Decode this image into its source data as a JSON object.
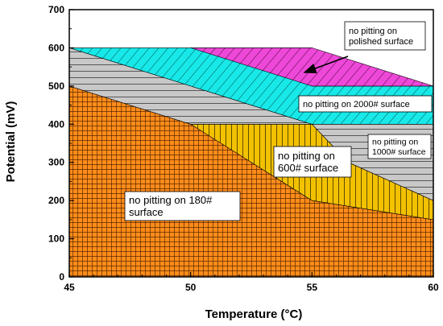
{
  "chart_data": {
    "type": "area",
    "title": "",
    "xlabel": "Temperature (°C)",
    "ylabel": "Potential (mV)",
    "xlim": [
      45,
      60
    ],
    "ylim": [
      0,
      700
    ],
    "x_ticks": [
      "45",
      "50",
      "55",
      "60"
    ],
    "y_ticks": [
      "0",
      "100",
      "200",
      "300",
      "400",
      "500",
      "600",
      "700"
    ],
    "grid": false,
    "regions": [
      {
        "name": "180# surface",
        "label_lines": [
          "no pitting on 180#",
          "surface"
        ],
        "color": "#ff8c1a",
        "pattern": "crosshatch",
        "boundary": [
          [
            45,
            0
          ],
          [
            45,
            500
          ],
          [
            50,
            400
          ],
          [
            55,
            200
          ],
          [
            60,
            150
          ],
          [
            60,
            0
          ]
        ]
      },
      {
        "name": "600# surface",
        "label_lines": [
          "no pitting on",
          "600# surface"
        ],
        "color": "#f2c100",
        "pattern": "vertical",
        "boundary": [
          [
            50,
            400
          ],
          [
            55,
            400
          ],
          [
            56.5,
            300
          ],
          [
            60,
            200
          ],
          [
            60,
            150
          ],
          [
            55,
            200
          ]
        ]
      },
      {
        "name": "1000# surface",
        "label_lines": [
          "no pitting on",
          "1000# surface"
        ],
        "color": "#c8c8c8",
        "pattern": "horizontal",
        "boundary": [
          [
            45,
            500
          ],
          [
            45,
            600
          ],
          [
            50,
            500
          ],
          [
            55,
            400
          ],
          [
            60,
            400
          ],
          [
            60,
            200
          ],
          [
            56.5,
            300
          ],
          [
            55,
            400
          ],
          [
            50,
            400
          ]
        ]
      },
      {
        "name": "2000# surface",
        "label_lines": [
          "no pitting on 2000# surface"
        ],
        "color": "#18e8e8",
        "pattern": "diagonal",
        "boundary": [
          [
            45,
            600
          ],
          [
            55,
            600
          ],
          [
            55,
            500
          ],
          [
            60,
            500
          ],
          [
            60,
            400
          ],
          [
            55,
            400
          ],
          [
            50,
            500
          ]
        ]
      },
      {
        "name": "polished surface",
        "label_lines": [
          "no pitting on",
          "polished surface"
        ],
        "color": "#ee48d8",
        "pattern": "diagonal",
        "boundary": [
          [
            50,
            600
          ],
          [
            55,
            600
          ],
          [
            60,
            500
          ],
          [
            55,
            500
          ]
        ]
      }
    ],
    "annotations": [
      {
        "text_lines": [
          "no pitting on",
          "polished surface"
        ],
        "region": "polished surface",
        "arrow": true
      }
    ]
  }
}
